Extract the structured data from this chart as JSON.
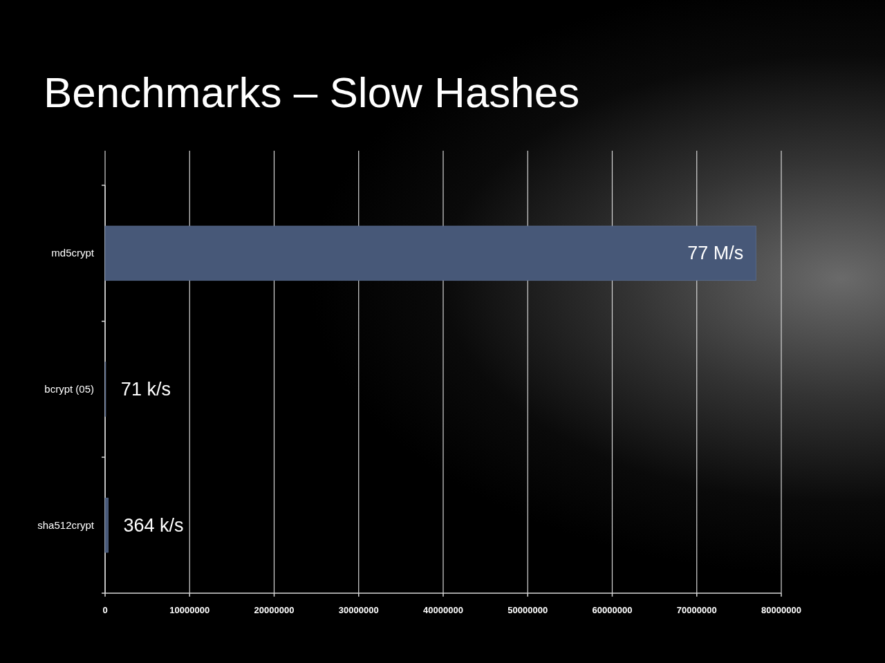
{
  "chart_data": {
    "type": "bar",
    "orientation": "horizontal",
    "title": "Benchmarks – Slow Hashes",
    "categories": [
      "md5crypt",
      "bcrypt (05)",
      "sha512crypt"
    ],
    "values": [
      77000000,
      71000,
      364000
    ],
    "value_labels": [
      "77 M/s",
      "71 k/s",
      "364 k/s"
    ],
    "color": "#475878",
    "xlim": [
      0,
      80000000
    ],
    "xticks": [
      0,
      10000000,
      20000000,
      30000000,
      40000000,
      50000000,
      60000000,
      70000000,
      80000000
    ],
    "grid": "x"
  }
}
